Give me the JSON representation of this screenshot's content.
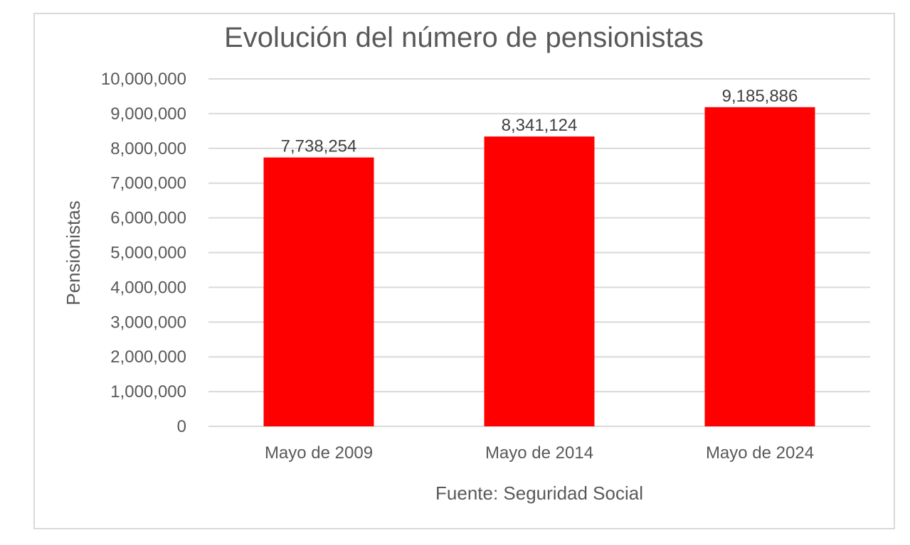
{
  "chart_data": {
    "type": "bar",
    "title": "Evolución del número de pensionistas",
    "xlabel": "Fuente: Seguridad Social",
    "ylabel": "Pensionistas",
    "categories": [
      "Mayo de 2009",
      "Mayo de 2014",
      "Mayo de 2024"
    ],
    "values": [
      7738254,
      8341124,
      9185886
    ],
    "value_labels": [
      "7,738,254",
      "8,341,124",
      "9,185,886"
    ],
    "ylim": [
      0,
      10000000
    ],
    "yticks": [
      0,
      1000000,
      2000000,
      3000000,
      4000000,
      5000000,
      6000000,
      7000000,
      8000000,
      9000000,
      10000000
    ],
    "ytick_labels": [
      "0",
      "1,000,000",
      "2,000,000",
      "3,000,000",
      "4,000,000",
      "5,000,000",
      "6,000,000",
      "7,000,000",
      "8,000,000",
      "9,000,000",
      "10,000,000"
    ],
    "grid": true,
    "legend": "none",
    "bar_color": "#ff0000",
    "grid_color": "#d9d9d9",
    "text_color": "#595959"
  }
}
